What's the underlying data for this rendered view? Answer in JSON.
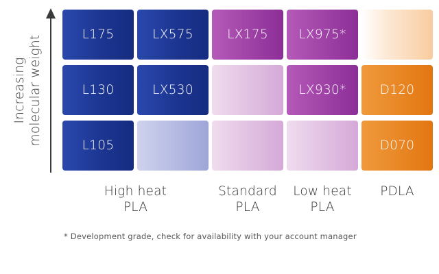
{
  "y_axis": {
    "label_lines": [
      "Increasing",
      "molecular weight"
    ]
  },
  "columns": [
    {
      "label_lines": [
        "High heat",
        "PLA"
      ]
    },
    {
      "label_lines": [
        "Standard",
        "PLA"
      ]
    },
    {
      "label_lines": [
        "Low heat",
        "PLA"
      ]
    },
    {
      "label_lines": [
        "PDLA",
        ""
      ]
    }
  ],
  "grid": {
    "rows": [
      [
        "L175",
        "LX575",
        "LX175",
        "LX975*",
        ""
      ],
      [
        "L130",
        "LX530",
        "",
        "LX930*",
        "D120"
      ],
      [
        "L105",
        "",
        "",
        "",
        "D070"
      ]
    ]
  },
  "colors": {
    "blue": "#1c3591",
    "blue_light": "#a9b0dd",
    "purple": "#9c3aa5",
    "purple_light": "#e2c2e3",
    "orange": "#e8841e",
    "orange_light": "#fbdcbc",
    "axis": "#3a3a3a"
  },
  "footnote": "* Development grade, check for availability with your account manager"
}
